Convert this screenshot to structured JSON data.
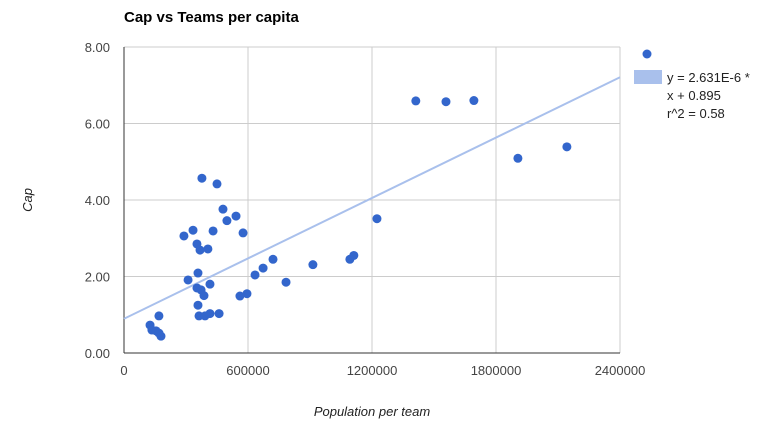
{
  "chart_data": {
    "type": "scatter",
    "title": "Cap vs Teams per capita",
    "xlabel": "Population per team",
    "ylabel": "Cap",
    "xlim": [
      0,
      2400000
    ],
    "ylim": [
      0,
      8
    ],
    "x_ticks": [
      "0",
      "600000",
      "1200000",
      "1800000",
      "2400000"
    ],
    "y_ticks": [
      "0.00",
      "2.00",
      "4.00",
      "6.00",
      "8.00"
    ],
    "grid": true,
    "legend_position": "right",
    "series": [
      {
        "name": "Cap",
        "color": "#3366cc",
        "points": [
          [
            126000,
            0.73
          ],
          [
            135000,
            0.6
          ],
          [
            155000,
            0.58
          ],
          [
            169000,
            0.52
          ],
          [
            179000,
            0.44
          ],
          [
            169000,
            0.97
          ],
          [
            290000,
            3.06
          ],
          [
            310000,
            1.91
          ],
          [
            334000,
            3.21
          ],
          [
            353000,
            2.85
          ],
          [
            358000,
            2.09
          ],
          [
            353000,
            1.7
          ],
          [
            358000,
            1.25
          ],
          [
            363000,
            0.97
          ],
          [
            368000,
            2.69
          ],
          [
            373000,
            1.65
          ],
          [
            377000,
            4.57
          ],
          [
            387000,
            1.5
          ],
          [
            392000,
            0.97
          ],
          [
            406000,
            2.72
          ],
          [
            416000,
            1.8
          ],
          [
            416000,
            1.03
          ],
          [
            431000,
            3.19
          ],
          [
            450000,
            4.42
          ],
          [
            460000,
            1.03
          ],
          [
            479000,
            3.76
          ],
          [
            498000,
            3.46
          ],
          [
            542000,
            3.58
          ],
          [
            561000,
            1.49
          ],
          [
            576000,
            3.14
          ],
          [
            595000,
            1.55
          ],
          [
            634000,
            2.04
          ],
          [
            673000,
            2.22
          ],
          [
            721000,
            2.45
          ],
          [
            784000,
            1.85
          ],
          [
            914000,
            2.31
          ],
          [
            1093000,
            2.45
          ],
          [
            1112000,
            2.55
          ],
          [
            1224000,
            3.51
          ],
          [
            1412000,
            6.59
          ],
          [
            1558000,
            6.57
          ],
          [
            1693000,
            6.6
          ],
          [
            1906000,
            5.09
          ],
          [
            2143000,
            5.39
          ]
        ]
      }
    ],
    "trendline": {
      "label_lines": [
        "y = 2.631E-6 *",
        "x + 0.895",
        "r^2 = 0.58"
      ],
      "slope": 2.631e-06,
      "intercept": 0.895,
      "r2": 0.58,
      "color": "#a9c0ec"
    }
  }
}
